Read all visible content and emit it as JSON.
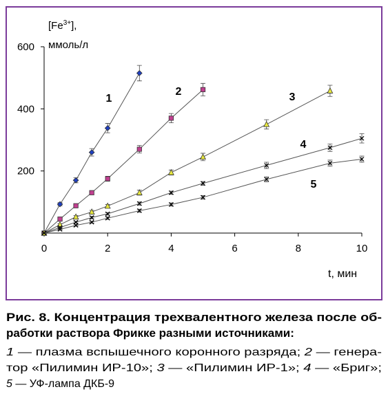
{
  "chart_data": {
    "type": "line",
    "y_label": {
      "main": "[Fe",
      "sup": "3+",
      "tail": "],",
      "unit": "ммоль/л"
    },
    "x_label": "t, мин",
    "xlim": [
      0,
      10
    ],
    "xticks": [
      0,
      2,
      4,
      6,
      8,
      10
    ],
    "ylim": [
      0,
      600
    ],
    "yticks": [
      200,
      400,
      600
    ],
    "series": [
      {
        "name": "1",
        "color": "#2040c0",
        "marker": "diamond",
        "x": [
          0,
          0.5,
          1,
          1.5,
          2,
          3
        ],
        "values": [
          0,
          93,
          170,
          260,
          338,
          515
        ],
        "errors": [
          0,
          5,
          8,
          12,
          15,
          25
        ]
      },
      {
        "name": "2",
        "color": "#c04090",
        "marker": "square",
        "x": [
          0,
          0.5,
          1,
          1.5,
          2,
          3,
          4,
          5
        ],
        "values": [
          0,
          45,
          88,
          130,
          175,
          270,
          370,
          462
        ],
        "errors": [
          0,
          4,
          5,
          6,
          8,
          12,
          15,
          20
        ]
      },
      {
        "name": "3",
        "color": "#e8e840",
        "marker": "triangle",
        "x": [
          0,
          0.5,
          1,
          1.5,
          2,
          3,
          4,
          5,
          7,
          9
        ],
        "values": [
          0,
          27,
          52,
          68,
          87,
          130,
          195,
          245,
          350,
          458
        ],
        "errors": [
          0,
          3,
          4,
          5,
          5,
          8,
          8,
          12,
          15,
          18
        ]
      },
      {
        "name": "4",
        "color": "#000000",
        "marker": "x",
        "x": [
          0,
          0.5,
          1,
          1.5,
          2,
          3,
          4,
          5,
          7,
          9,
          10
        ],
        "values": [
          0,
          18,
          35,
          50,
          62,
          95,
          130,
          160,
          218,
          275,
          305
        ],
        "errors": [
          0,
          3,
          3,
          4,
          4,
          5,
          5,
          6,
          10,
          12,
          15
        ]
      },
      {
        "name": "5",
        "color": "#000000",
        "marker": "x",
        "x": [
          0,
          0.5,
          1,
          1.5,
          2,
          3,
          4,
          5,
          7,
          9,
          10
        ],
        "values": [
          0,
          12,
          25,
          35,
          48,
          72,
          92,
          115,
          173,
          225,
          238
        ],
        "errors": [
          0,
          3,
          3,
          3,
          4,
          5,
          5,
          6,
          8,
          10,
          10
        ]
      }
    ]
  },
  "caption": {
    "title": [
      "Рис. 8. Концентрация трехвалентного железа после об-",
      "работки раствора Фрикке разными источниками:"
    ],
    "body": [
      [
        "1",
        " — плазма вспышечного коронного разряда; ",
        "2",
        " — генера-"
      ],
      [
        "тор «Пилимин ИР-10»; ",
        "3",
        " — «Пилимин ИР-1»; ",
        "4",
        " — «Бриг»;"
      ],
      [
        "5",
        " — УФ-лампа ДКБ-9"
      ]
    ]
  }
}
